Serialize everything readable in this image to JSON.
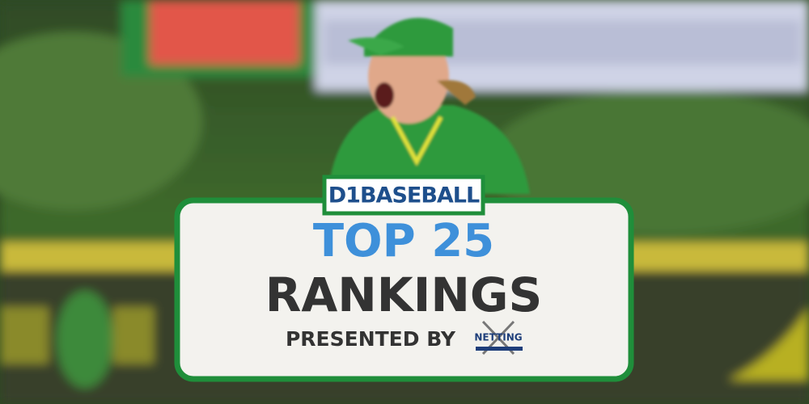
{
  "brand": "D1BASEBALL",
  "headline": "TOP 25",
  "subheadline": "RANKINGS",
  "sponsor_intro": "PRESENTED BY",
  "sponsor": "NETTING"
}
